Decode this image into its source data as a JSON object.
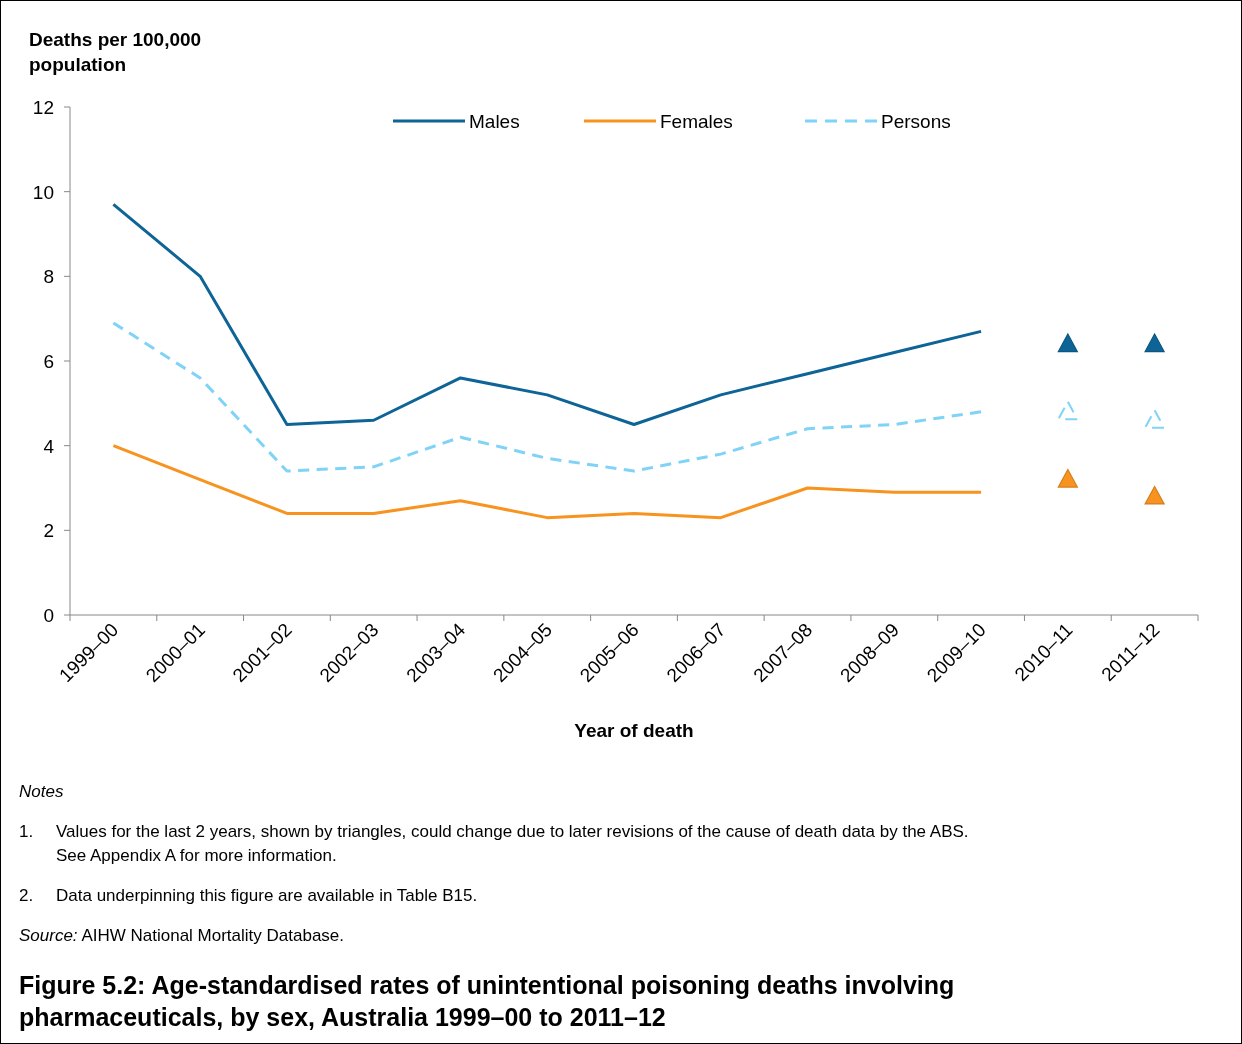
{
  "chart_data": {
    "type": "line",
    "title": "Figure 5.2: Age-standardised rates of unintentional poisoning deaths involving pharmaceuticals, by sex, Australia 1999–00 to 2011–12",
    "ylabel": "Deaths per 100,000 population",
    "xlabel": "Year of death",
    "categories": [
      "1999–00",
      "2000–01",
      "2001–02",
      "2002–03",
      "2003–04",
      "2004–05",
      "2005–06",
      "2006–07",
      "2007–08",
      "2008–09",
      "2009–10",
      "2010–11",
      "2011–12"
    ],
    "series": [
      {
        "name": "Males",
        "color": "#0e6496",
        "values": [
          9.7,
          8.0,
          4.5,
          4.6,
          5.6,
          5.2,
          4.5,
          5.2,
          5.7,
          6.2,
          6.7,
          null,
          null
        ]
      },
      {
        "name": "Females",
        "color": "#f7931e",
        "values": [
          4.0,
          3.2,
          2.4,
          2.4,
          2.7,
          2.3,
          2.4,
          2.3,
          3.0,
          2.9,
          2.9,
          null,
          null
        ]
      },
      {
        "name": "Persons",
        "color": "#7fd3f7",
        "line_style": "dashed",
        "values": [
          6.9,
          5.6,
          3.4,
          3.5,
          4.2,
          3.7,
          3.4,
          3.8,
          4.4,
          4.5,
          4.8,
          null,
          null
        ]
      },
      {
        "type": "scatter",
        "marker": "triangle",
        "color": "#0e6496",
        "values": [
          null,
          null,
          null,
          null,
          null,
          null,
          null,
          null,
          null,
          null,
          null,
          6.4,
          6.4
        ]
      },
      {
        "type": "scatter",
        "marker": "triangle",
        "color": "#f7931e",
        "values": [
          null,
          null,
          null,
          null,
          null,
          null,
          null,
          null,
          null,
          null,
          null,
          3.2,
          2.8
        ]
      },
      {
        "type": "scatter",
        "marker": "triangle",
        "color": "#7fd3f7",
        "line_style": "dashed",
        "values": [
          null,
          null,
          null,
          null,
          null,
          null,
          null,
          null,
          null,
          null,
          null,
          4.8,
          4.6
        ]
      }
    ],
    "ylim": [
      0,
      12
    ],
    "yticks": [
      0,
      2,
      4,
      6,
      8,
      10,
      12
    ],
    "grid": false,
    "legend": "top",
    "line_style": "solid",
    "annotations": [
      "Notes",
      "1.\tValues for the last 2 years, shown by triangles, could change due to later revisions of the cause of death data by the ABS. See Appendix A for more information.",
      "2.\tData underpinning this figure are available in Table B15.",
      "Source: AIHW National Mortality Database."
    ]
  }
}
